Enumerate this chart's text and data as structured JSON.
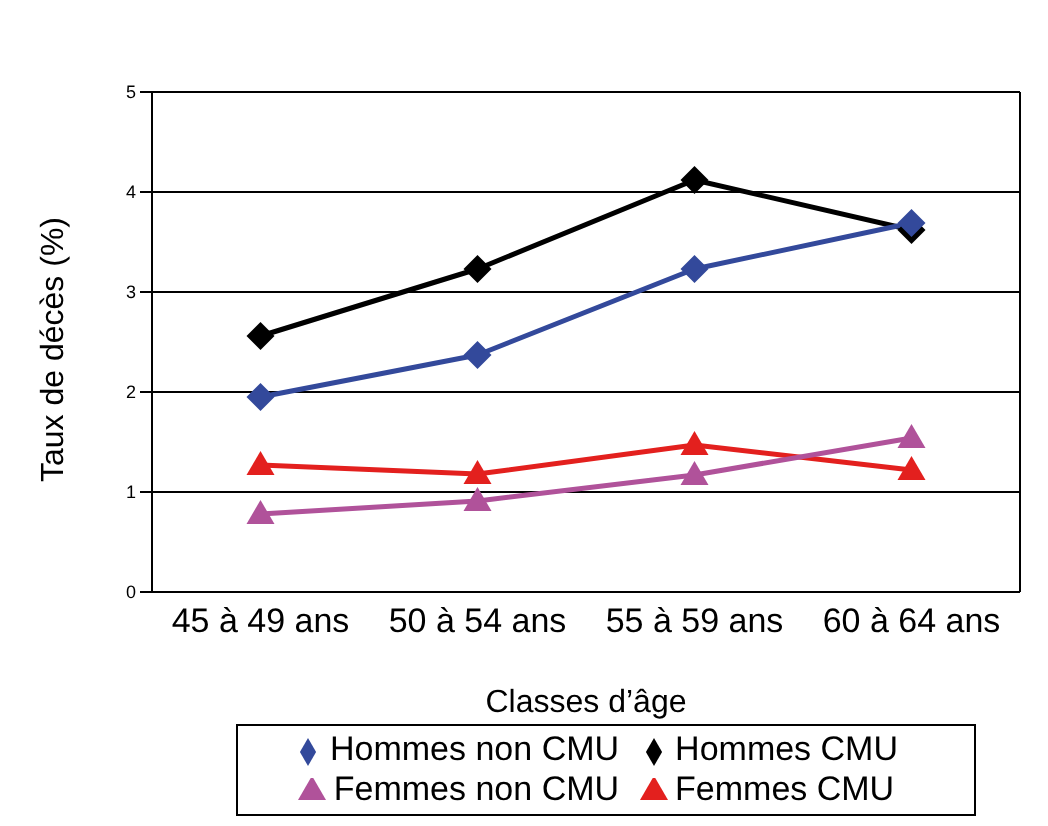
{
  "chart_data": {
    "type": "line",
    "xlabel": "Classes d’âge",
    "ylabel": "Taux de décès (%)",
    "categories": [
      "45 à 49 ans",
      "50 à 54 ans",
      "55 à 59 ans",
      "60 à 64 ans"
    ],
    "series": [
      {
        "name": "Hommes non CMU",
        "color": "#33499b",
        "marker": "diamond",
        "values": [
          1.95,
          2.37,
          3.23,
          3.69
        ]
      },
      {
        "name": "Hommes CMU",
        "color": "#000000",
        "marker": "diamond",
        "values": [
          2.56,
          3.23,
          4.12,
          3.62
        ]
      },
      {
        "name": "Femmes non CMU",
        "color": "#b0529a",
        "marker": "triangle",
        "values": [
          0.78,
          0.91,
          1.17,
          1.54
        ]
      },
      {
        "name": "Femmes CMU",
        "color": "#e3201e",
        "marker": "triangle",
        "values": [
          1.27,
          1.18,
          1.47,
          1.22
        ]
      }
    ],
    "ylim": [
      0,
      5
    ],
    "yticks": [
      0,
      1,
      2,
      3,
      4,
      5
    ],
    "grid": "y",
    "legend": "bottom",
    "line_style": "solid"
  }
}
